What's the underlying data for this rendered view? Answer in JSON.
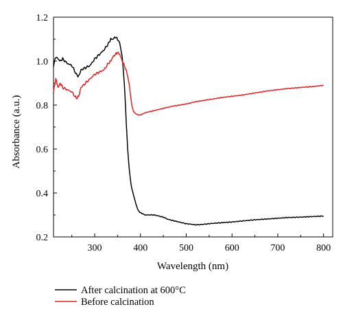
{
  "chart_data": {
    "type": "line",
    "title": "",
    "xlabel": "Wavelength (nm)",
    "ylabel": "Absorbance (a.u.)",
    "xlim": [
      210,
      820
    ],
    "ylim": [
      0.2,
      1.2
    ],
    "xticks": [
      300,
      400,
      500,
      600,
      700,
      800
    ],
    "yticks": [
      0.2,
      0.4,
      0.6,
      0.8,
      1.0,
      1.2
    ],
    "xtick_labels": [
      "300",
      "400",
      "500",
      "600",
      "700",
      "800"
    ],
    "ytick_labels": [
      "0.2",
      "0.4",
      "0.6",
      "0.8",
      "1.0",
      "1.2"
    ],
    "grid": false,
    "legend_position": "bottom-left, below plot",
    "series": [
      {
        "name": "After calcination at 600°C",
        "color": "#000000",
        "x": [
          210,
          215,
          220,
          225,
          230,
          240,
          250,
          260,
          265,
          270,
          280,
          290,
          300,
          310,
          320,
          330,
          335,
          340,
          345,
          350,
          355,
          360,
          363,
          366,
          369,
          372,
          375,
          378,
          381,
          385,
          390,
          395,
          400,
          405,
          410,
          420,
          430,
          440,
          450,
          460,
          470,
          480,
          490,
          500,
          510,
          520,
          530,
          540,
          550,
          560,
          580,
          600,
          620,
          650,
          680,
          700,
          720,
          750,
          780,
          800
        ],
        "y": [
          0.98,
          1.02,
          1.01,
          1.0,
          1.01,
          0.99,
          0.98,
          0.94,
          0.93,
          0.96,
          0.97,
          0.98,
          1.01,
          1.03,
          1.05,
          1.08,
          1.1,
          1.1,
          1.11,
          1.1,
          1.08,
          1.02,
          0.95,
          0.85,
          0.72,
          0.6,
          0.52,
          0.46,
          0.42,
          0.39,
          0.35,
          0.32,
          0.31,
          0.305,
          0.3,
          0.3,
          0.3,
          0.295,
          0.29,
          0.28,
          0.275,
          0.27,
          0.265,
          0.26,
          0.258,
          0.255,
          0.256,
          0.258,
          0.26,
          0.262,
          0.265,
          0.268,
          0.272,
          0.278,
          0.282,
          0.285,
          0.288,
          0.29,
          0.293,
          0.295
        ]
      },
      {
        "name": "Before calcination",
        "color": "#e02020",
        "x": [
          210,
          215,
          220,
          225,
          230,
          240,
          250,
          260,
          265,
          270,
          280,
          290,
          300,
          310,
          320,
          330,
          335,
          340,
          345,
          350,
          355,
          360,
          365,
          370,
          375,
          378,
          381,
          385,
          390,
          395,
          400,
          405,
          410,
          420,
          430,
          450,
          470,
          500,
          520,
          550,
          580,
          600,
          620,
          650,
          680,
          700,
          720,
          750,
          780,
          800
        ],
        "y": [
          0.86,
          0.92,
          0.88,
          0.9,
          0.88,
          0.87,
          0.86,
          0.83,
          0.84,
          0.88,
          0.9,
          0.92,
          0.94,
          0.95,
          0.96,
          0.99,
          1.0,
          1.02,
          1.03,
          1.04,
          1.03,
          1.0,
          0.98,
          0.95,
          0.9,
          0.85,
          0.8,
          0.77,
          0.76,
          0.755,
          0.755,
          0.76,
          0.765,
          0.77,
          0.775,
          0.785,
          0.795,
          0.805,
          0.815,
          0.825,
          0.835,
          0.84,
          0.845,
          0.855,
          0.865,
          0.87,
          0.875,
          0.88,
          0.885,
          0.89
        ]
      }
    ]
  }
}
